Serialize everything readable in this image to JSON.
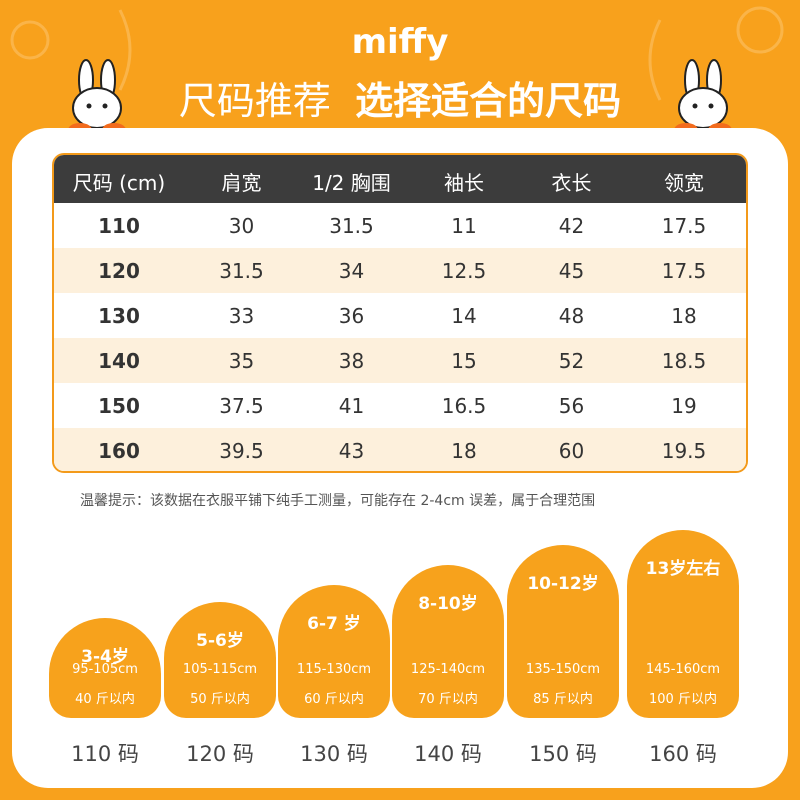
{
  "header": {
    "brand": "miffy",
    "title": "尺码推荐",
    "subtitle": "选择适合的尺码"
  },
  "table": {
    "columns": [
      "尺码 (cm)",
      "肩宽",
      "1/2 胸围",
      "袖长",
      "衣长",
      "领宽"
    ],
    "rows": [
      [
        "110",
        "30",
        "31.5",
        "11",
        "42",
        "17.5"
      ],
      [
        "120",
        "31.5",
        "34",
        "12.5",
        "45",
        "17.5"
      ],
      [
        "130",
        "33",
        "36",
        "14",
        "48",
        "18"
      ],
      [
        "140",
        "35",
        "38",
        "15",
        "52",
        "18.5"
      ],
      [
        "150",
        "37.5",
        "41",
        "16.5",
        "56",
        "19"
      ],
      [
        "160",
        "39.5",
        "43",
        "18",
        "60",
        "19.5"
      ]
    ]
  },
  "note": "温馨提示：该数据在衣服平铺下纯手工测量，可能存在 2-4cm 误差，属于合理范围",
  "cards": [
    {
      "age": "3-4岁",
      "height": "95-105cm",
      "weight": "40 斤以内",
      "size": "110 码"
    },
    {
      "age": "5-6岁",
      "height": "105-115cm",
      "weight": "50 斤以内",
      "size": "120 码"
    },
    {
      "age": "6-7 岁",
      "height": "115-130cm",
      "weight": "60 斤以内",
      "size": "130 码"
    },
    {
      "age": "8-10岁",
      "height": "125-140cm",
      "weight": "70 斤以内",
      "size": "140 码"
    },
    {
      "age": "10-12岁",
      "height": "135-150cm",
      "weight": "85 斤以内",
      "size": "150 码"
    },
    {
      "age": "13岁左右",
      "height": "145-160cm",
      "weight": "100 斤以内",
      "size": "160 码"
    }
  ]
}
